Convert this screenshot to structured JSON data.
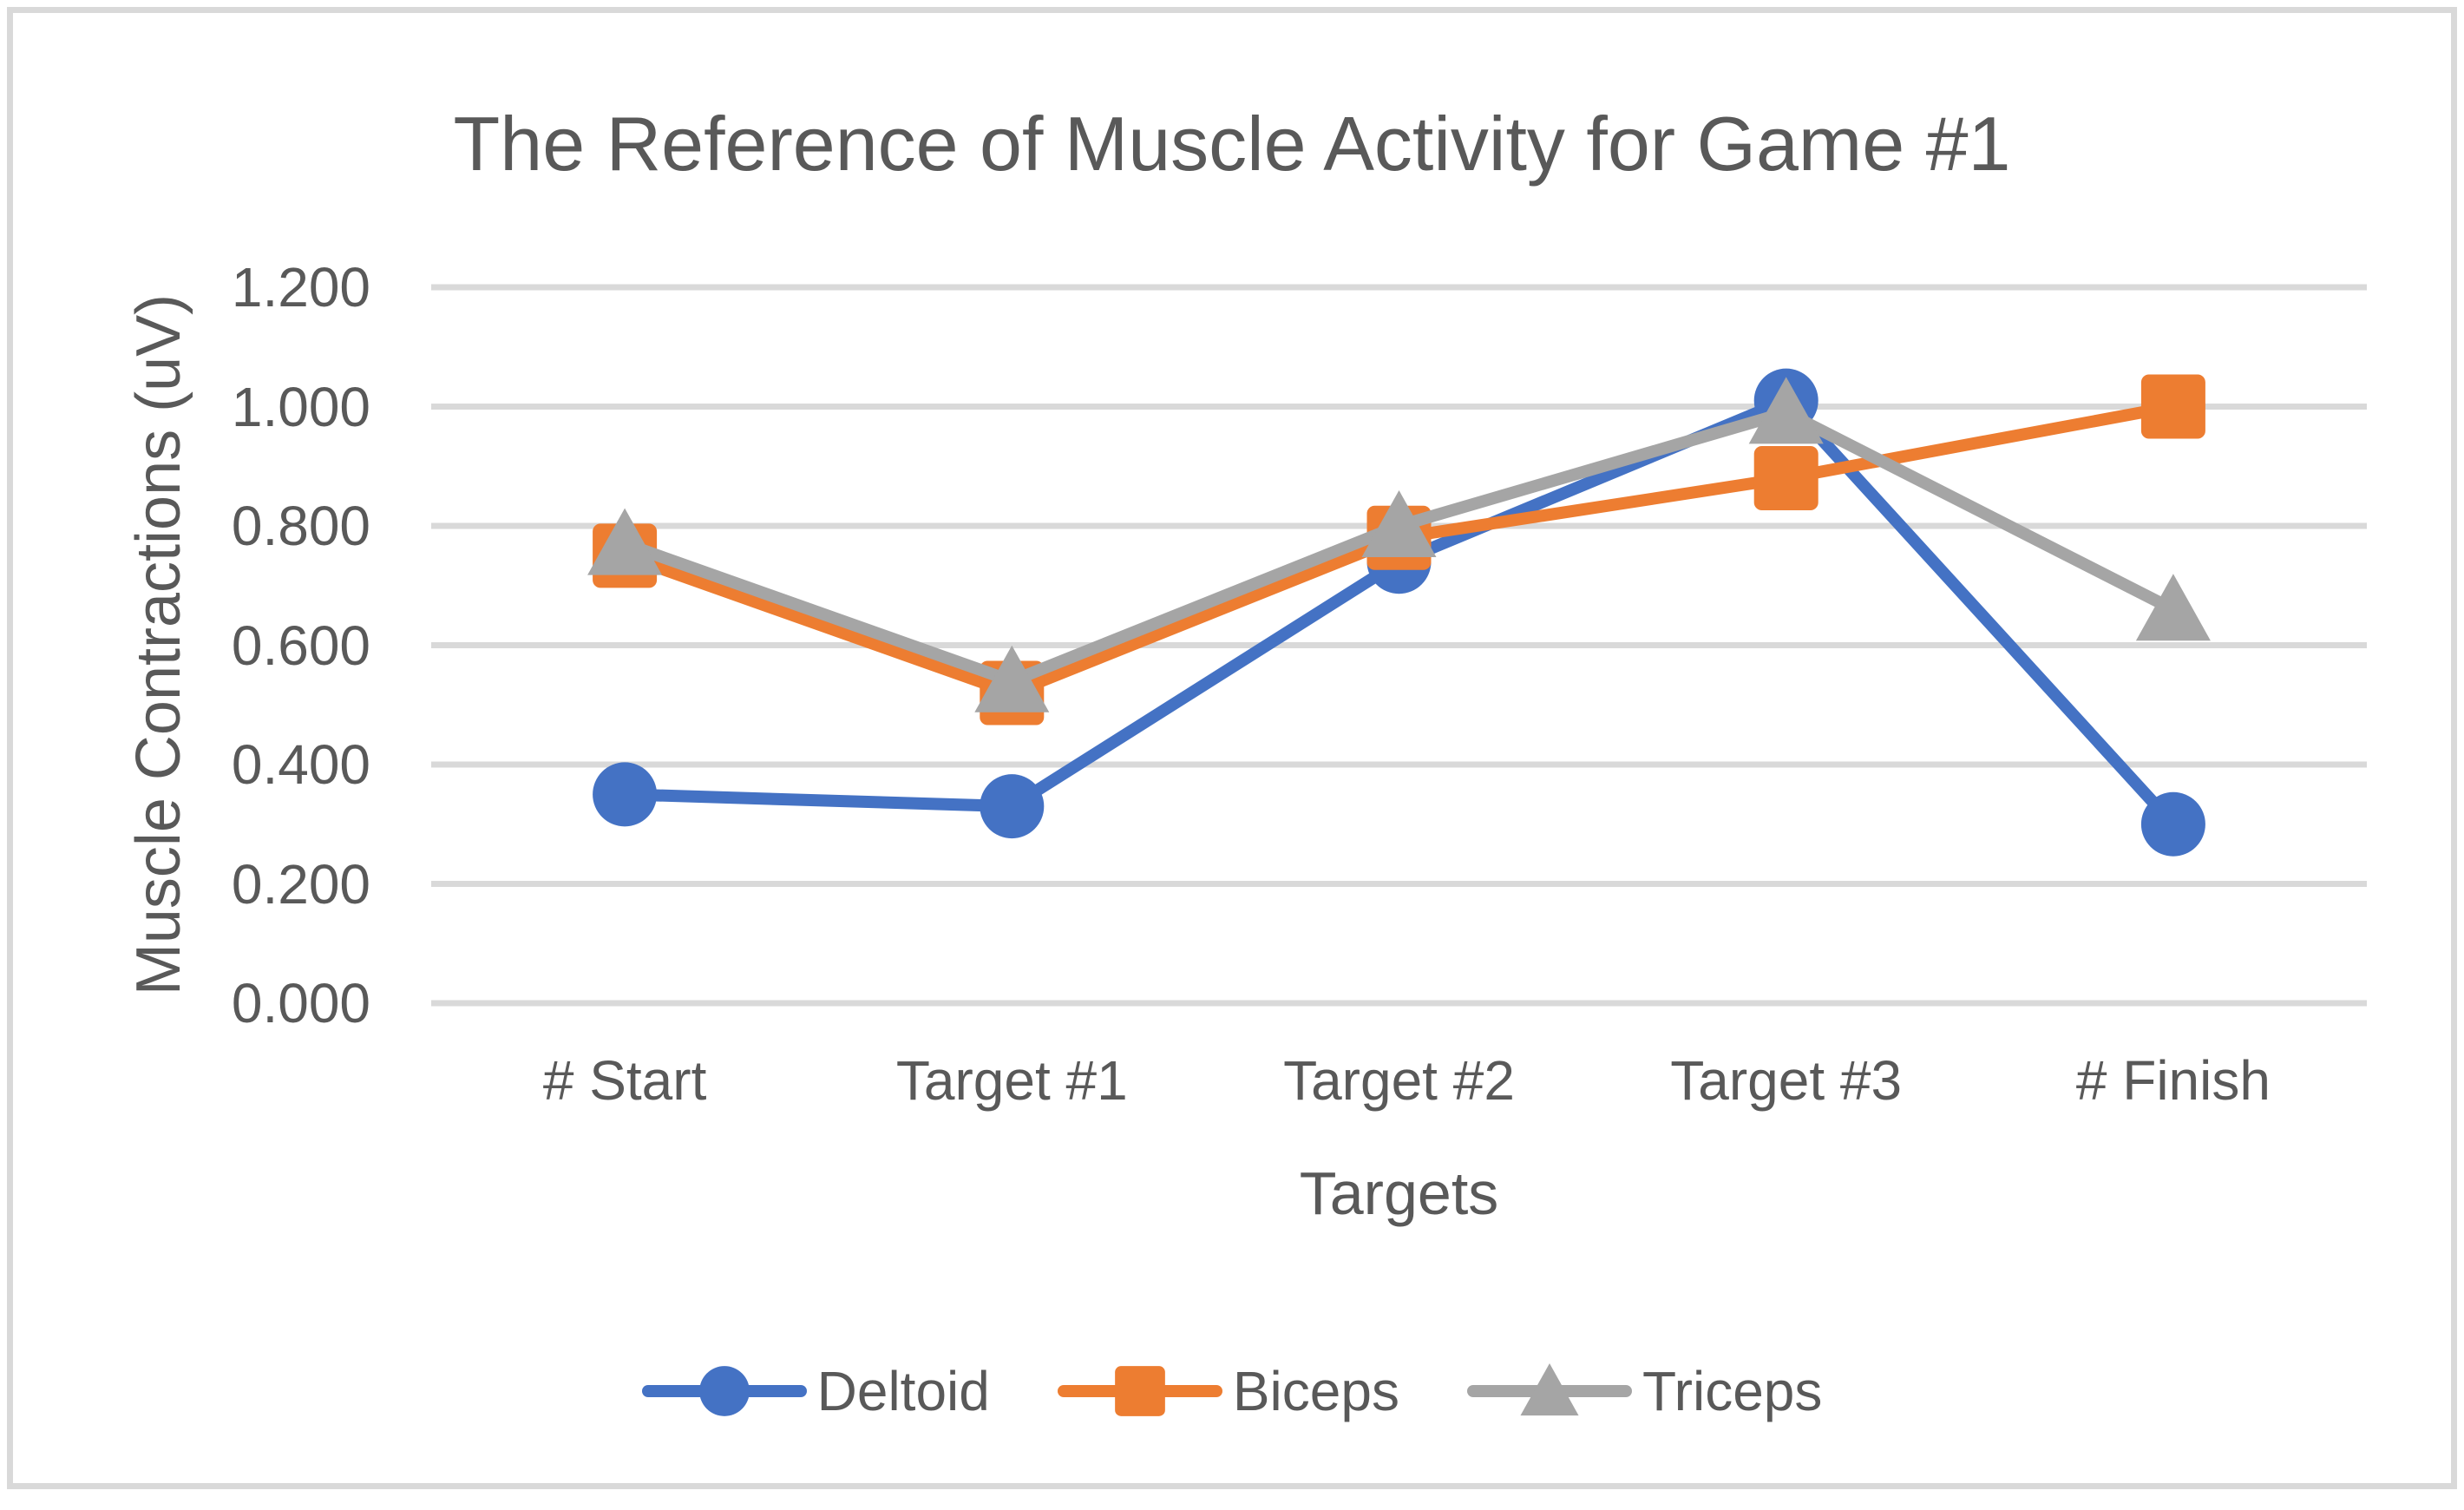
{
  "chart_data": {
    "type": "line",
    "title": "The Reference of Muscle Activity for Game #1",
    "xlabel": "Targets",
    "ylabel": "Muscle Contractions (uV)",
    "categories": [
      "# Start",
      "Target #1",
      "Target #2",
      "Target #3",
      "# Finish"
    ],
    "series": [
      {
        "name": "Deltoid",
        "color": "#4472C4",
        "marker": "circle",
        "values": [
          0.35,
          0.33,
          0.74,
          1.01,
          0.3
        ]
      },
      {
        "name": "Biceps",
        "color": "#ED7D31",
        "marker": "square",
        "values": [
          0.75,
          0.52,
          0.78,
          0.88,
          1.0
        ]
      },
      {
        "name": "Triceps",
        "color": "#A5A5A5",
        "marker": "triangle",
        "values": [
          0.77,
          0.54,
          0.8,
          0.99,
          0.66
        ]
      }
    ],
    "ylim": [
      0.0,
      1.2
    ],
    "ytick_step": 0.2,
    "ytick_labels": [
      "0.000",
      "0.200",
      "0.400",
      "0.600",
      "0.800",
      "1.000",
      "1.200"
    ],
    "grid": true,
    "legend_position": "bottom"
  },
  "colors": {
    "background": "#FFFFFF",
    "border": "#D9D9D9",
    "gridline": "#D9D9D9",
    "text": "#595959"
  }
}
